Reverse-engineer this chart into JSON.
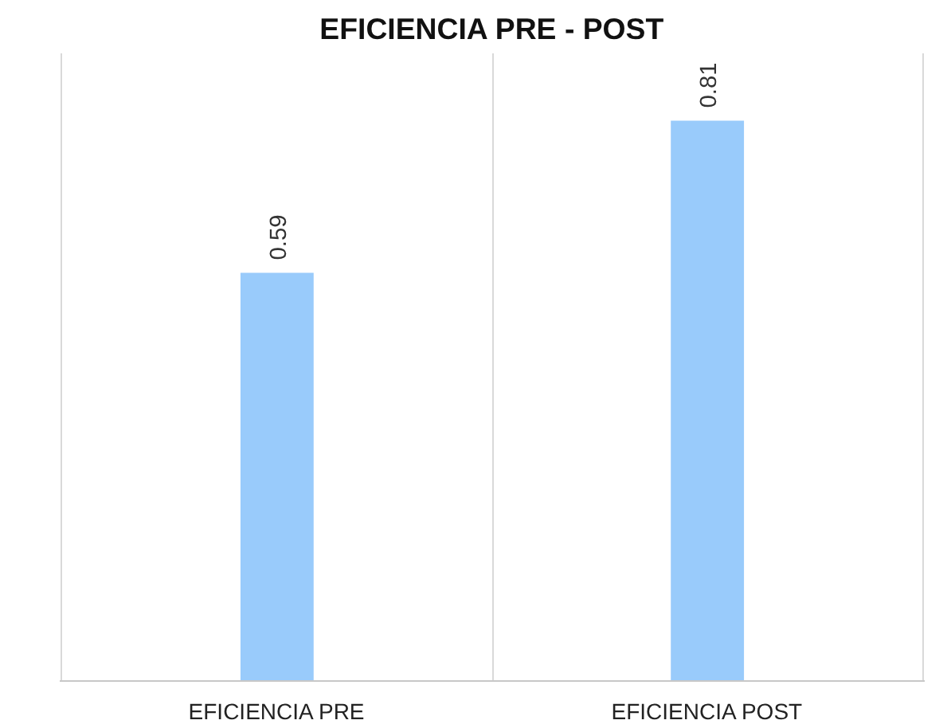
{
  "chart_data": {
    "type": "bar",
    "title": "EFICIENCIA PRE - POST",
    "categories": [
      "EFICIENCIA PRE",
      "EFICIENCIA POST"
    ],
    "values": [
      0.59,
      0.81
    ],
    "color": "#99cbfb",
    "data_labels": true,
    "grid": "x"
  }
}
